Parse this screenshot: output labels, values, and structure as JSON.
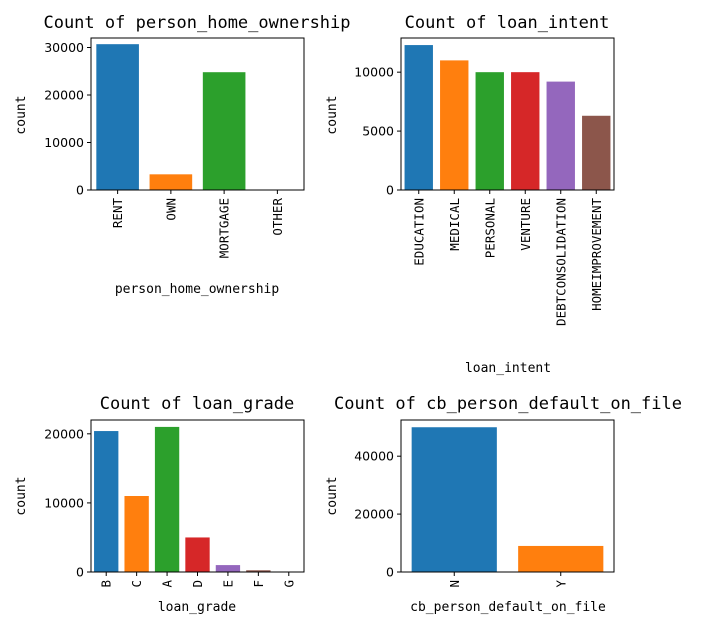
{
  "chart_data": [
    {
      "type": "bar",
      "title": "Count of person_home_ownership",
      "xlabel": "person_home_ownership",
      "ylabel": "count",
      "categories": [
        "RENT",
        "OWN",
        "MORTGAGE",
        "OTHER"
      ],
      "values": [
        30700,
        3300,
        24800,
        100
      ],
      "ylim": [
        0,
        32000
      ],
      "yticks": [
        0,
        10000,
        20000,
        30000
      ],
      "x_tick_rotation": "vertical",
      "colors": [
        "#1f77b4",
        "#ff7f0e",
        "#2ca02c",
        "#d62728"
      ]
    },
    {
      "type": "bar",
      "title": "Count of loan_intent",
      "xlabel": "loan_intent",
      "ylabel": "count",
      "categories": [
        "EDUCATION",
        "MEDICAL",
        "PERSONAL",
        "VENTURE",
        "DEBTCONSOLIDATION",
        "HOMEIMPROVEMENT"
      ],
      "values": [
        12300,
        11000,
        10000,
        10000,
        9200,
        6300
      ],
      "ylim": [
        0,
        12900
      ],
      "yticks": [
        0,
        5000,
        10000
      ],
      "x_tick_rotation": "vertical",
      "colors": [
        "#1f77b4",
        "#ff7f0e",
        "#2ca02c",
        "#d62728",
        "#9467bd",
        "#8c564b"
      ]
    },
    {
      "type": "bar",
      "title": "Count of loan_grade",
      "xlabel": "loan_grade",
      "ylabel": "count",
      "categories": [
        "B",
        "C",
        "A",
        "D",
        "E",
        "F",
        "G"
      ],
      "values": [
        20400,
        11000,
        21000,
        5000,
        1000,
        250,
        50
      ],
      "ylim": [
        0,
        22000
      ],
      "yticks": [
        0,
        10000,
        20000
      ],
      "x_tick_rotation": "vertical",
      "colors": [
        "#1f77b4",
        "#ff7f0e",
        "#2ca02c",
        "#d62728",
        "#9467bd",
        "#8c564b",
        "#e377c2"
      ]
    },
    {
      "type": "bar",
      "title": "Count of cb_person_default_on_file",
      "xlabel": "cb_person_default_on_file",
      "ylabel": "count",
      "categories": [
        "N",
        "Y"
      ],
      "values": [
        50000,
        9000
      ],
      "ylim": [
        0,
        52500
      ],
      "yticks": [
        0,
        20000,
        40000
      ],
      "x_tick_rotation": "vertical",
      "colors": [
        "#1f77b4",
        "#ff7f0e"
      ]
    }
  ]
}
